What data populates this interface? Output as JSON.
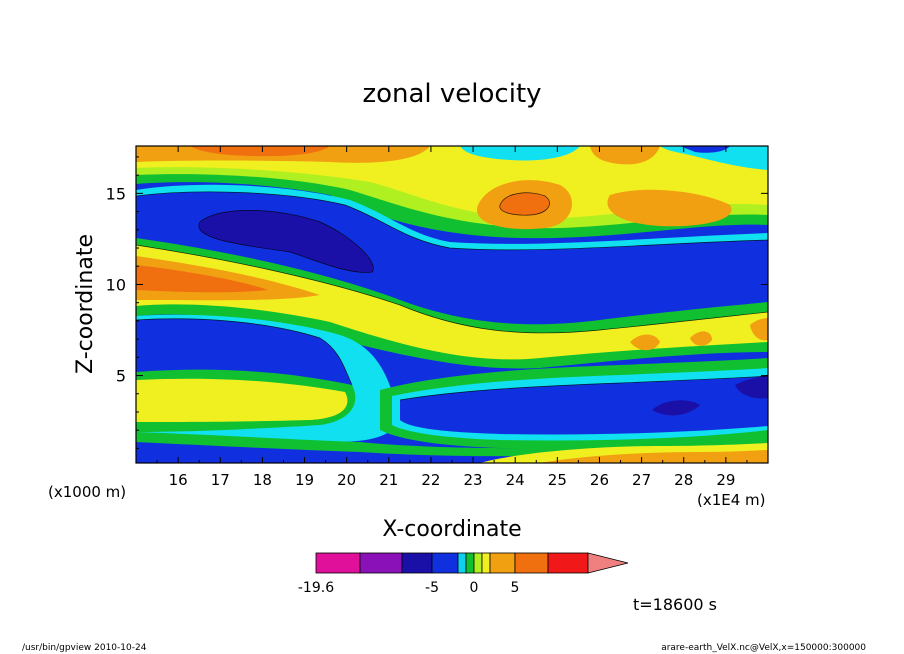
{
  "chart_data": {
    "type": "heatmap",
    "title": "zonal velocity",
    "xlabel": "X-coordinate",
    "ylabel": "Z-coordinate",
    "x_unit_left": "(x1000 m)",
    "x_unit_right": "(x1E4 m)",
    "x_ticks": [
      "16",
      "17",
      "18",
      "19",
      "20",
      "21",
      "22",
      "23",
      "24",
      "25",
      "26",
      "27",
      "28",
      "29"
    ],
    "x_tick_values": [
      16,
      17,
      18,
      19,
      20,
      21,
      22,
      23,
      24,
      25,
      26,
      27,
      28,
      29
    ],
    "xlim": [
      15.0,
      30.0
    ],
    "y_ticks": [
      "5",
      "10",
      "15"
    ],
    "y_tick_values": [
      5,
      10,
      15
    ],
    "ylim": [
      0.2,
      17.6
    ],
    "colorbar": {
      "labels": [
        "-19.6",
        "-5",
        "0",
        "5"
      ],
      "label_values": [
        -19.6,
        -5,
        0,
        5
      ],
      "colors": [
        "#e0109a",
        "#8a10b8",
        "#1a10a8",
        "#1030e0",
        "#10d0f0",
        "#10c030",
        "#b0f020",
        "#f0f020",
        "#f0a010",
        "#f07010",
        "#f01818",
        "#f08080"
      ]
    },
    "time_label": "t=18600 s",
    "footer_left": "/usr/bin/gpview  2010-10-24",
    "footer_right": "arare-earth_VelX.nc@VelX,x=150000:300000",
    "levels": {
      "dark_blue": "#1a10a8",
      "blue": "#1030e0",
      "cyan": "#10e0f0",
      "green": "#10c030",
      "light_green": "#b0f020",
      "yellow": "#f0f020",
      "light_orange": "#f0b020",
      "orange": "#f08c10",
      "dark_orange": "#f06010"
    }
  }
}
